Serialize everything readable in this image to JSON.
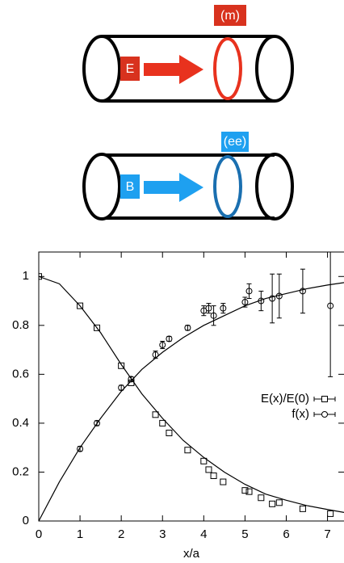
{
  "diagrams": [
    {
      "tag": "(m)",
      "label": "E"
    },
    {
      "tag": "(ee)",
      "label": "B"
    }
  ],
  "chart_data": {
    "type": "scatter",
    "xlabel": "x/a",
    "xlim": [
      0,
      7.4
    ],
    "ylim": [
      0,
      1.1
    ],
    "xticks": [
      0,
      1,
      2,
      3,
      4,
      5,
      6,
      7
    ],
    "yticks": [
      0,
      0.2,
      0.4,
      0.6,
      0.8,
      1
    ],
    "legend": "right",
    "x": [
      0,
      1,
      1.41,
      2,
      2.24,
      2.83,
      3,
      3.16,
      3.61,
      4,
      4.12,
      4.24,
      4.47,
      5,
      5.1,
      5.39,
      5.66,
      5.83,
      6.4,
      7.07
    ],
    "series": [
      {
        "name": "E(x)/E(0)",
        "color": "#000000",
        "marker": "square",
        "values": [
          1,
          0.88,
          0.79,
          0.635,
          0.565,
          0.435,
          0.4,
          0.36,
          0.29,
          0.245,
          0.21,
          0.185,
          0.16,
          0.125,
          0.12,
          0.095,
          0.07,
          0.075,
          0.05,
          0.03
        ]
      },
      {
        "name": "f(x)",
        "color": "#000000",
        "marker": "circle",
        "values": [
          null,
          0.295,
          0.4,
          0.545,
          0.58,
          0.68,
          0.72,
          0.745,
          0.79,
          0.86,
          0.87,
          0.84,
          0.87,
          0.895,
          0.94,
          0.9,
          0.91,
          0.92,
          0.94,
          0.88
        ],
        "errors": [
          null,
          0.01,
          0.01,
          0.01,
          0.01,
          0.015,
          0.015,
          0.01,
          0.01,
          0.02,
          0.02,
          0.04,
          0.02,
          0.02,
          0.03,
          0.04,
          0.1,
          0.09,
          0.09,
          0.29
        ]
      }
    ],
    "curves": {
      "x": [
        0,
        0.5,
        1,
        1.5,
        2,
        2.5,
        3,
        3.5,
        4,
        4.5,
        5,
        5.5,
        6,
        6.5,
        7,
        7.4
      ],
      "series": [
        {
          "color": "#000000",
          "values": [
            1,
            0.97,
            0.88,
            0.77,
            0.64,
            0.52,
            0.42,
            0.33,
            0.26,
            0.2,
            0.15,
            0.11,
            0.085,
            0.063,
            0.047,
            0.035
          ]
        },
        {
          "color": "#000000",
          "values": [
            0,
            0.16,
            0.3,
            0.42,
            0.53,
            0.62,
            0.69,
            0.75,
            0.8,
            0.84,
            0.88,
            0.91,
            0.93,
            0.95,
            0.965,
            0.975
          ]
        }
      ]
    }
  }
}
